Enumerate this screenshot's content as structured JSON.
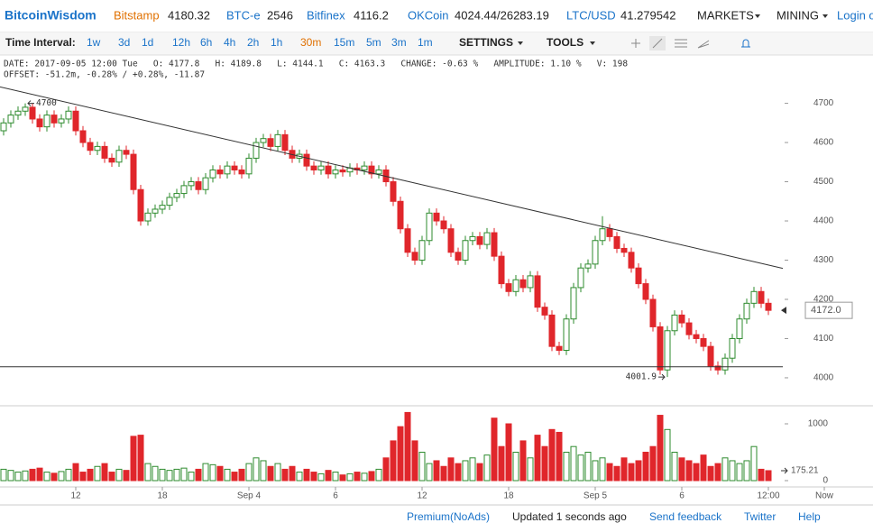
{
  "header": {
    "brand": "BitcoinWisdom",
    "tickers": [
      {
        "name": "Bitstamp",
        "price": "4180.32"
      },
      {
        "name": "BTC-e",
        "price": "2546"
      },
      {
        "name": "Bitfinex",
        "price": "4116.2"
      },
      {
        "name": "OKCoin",
        "price": "4024.44/26283.19"
      },
      {
        "name": "LTC/USD",
        "price": "41.279542"
      }
    ],
    "menus": [
      "MARKETS",
      "MINING"
    ],
    "login": "Login o"
  },
  "toolbar": {
    "label": "Time Interval:",
    "intervals": [
      "1w",
      "3d",
      "1d",
      "12h",
      "6h",
      "4h",
      "2h",
      "1h",
      "30m",
      "15m",
      "5m",
      "3m",
      "1m"
    ],
    "active": "30m",
    "menus": [
      "SETTINGS",
      "TOOLS"
    ]
  },
  "info": [
    "DATE: 2017-09-05 12:00 Tue   O: 4177.8   H: 4189.8   L: 4144.1   C: 4163.3   CHANGE: -0.63 %   AMPLITUDE: 1.10 %   V: 198",
    "OFFSET: -51.2m, -0.28% / +0.28%, -11.87"
  ],
  "chart_data": {
    "type": "candlestick",
    "up_color": "#2e8b2e",
    "down_color": "#e0262b",
    "open": [
      4630,
      4650,
      4670,
      4680,
      4690,
      4660,
      4640,
      4670,
      4650,
      4660,
      4680,
      4630,
      4600,
      4580,
      4590,
      4560,
      4550,
      4580,
      4570,
      4480,
      4400,
      4420,
      4430,
      4440,
      4460,
      4470,
      4490,
      4500,
      4480,
      4510,
      4530,
      4520,
      4540,
      4530,
      4520,
      4560,
      4600,
      4610,
      4590,
      4620,
      4580,
      4560,
      4570,
      4540,
      4530,
      4540,
      4520,
      4530,
      4525,
      4535,
      4530,
      4540,
      4520,
      4530,
      4500,
      4450,
      4380,
      4320,
      4300,
      4350,
      4420,
      4400,
      4380,
      4320,
      4300,
      4350,
      4360,
      4340,
      4370,
      4310,
      4240,
      4220,
      4250,
      4230,
      4260,
      4180,
      4160,
      4080,
      4070,
      4150,
      4230,
      4280,
      4290,
      4350,
      4380,
      4360,
      4330,
      4320,
      4280,
      4240,
      4200,
      4130,
      4020,
      4120,
      4160,
      4140,
      4110,
      4100,
      4080,
      4030,
      4020,
      4050,
      4100,
      4150,
      4190,
      4220,
      4190
    ],
    "high": [
      4662,
      4682,
      4692,
      4700,
      4700,
      4672,
      4682,
      4682,
      4672,
      4692,
      4692,
      4642,
      4612,
      4602,
      4602,
      4572,
      4592,
      4592,
      4582,
      4492,
      4432,
      4442,
      4452,
      4472,
      4482,
      4502,
      4512,
      4512,
      4522,
      4542,
      4542,
      4552,
      4552,
      4542,
      4572,
      4612,
      4622,
      4622,
      4632,
      4632,
      4592,
      4582,
      4582,
      4552,
      4552,
      4552,
      4542,
      4542,
      4547,
      4547,
      4552,
      4552,
      4542,
      4542,
      4512,
      4462,
      4392,
      4332,
      4362,
      4432,
      4432,
      4412,
      4392,
      4332,
      4362,
      4372,
      4372,
      4382,
      4382,
      4322,
      4252,
      4262,
      4262,
      4272,
      4272,
      4192,
      4172,
      4092,
      4162,
      4242,
      4292,
      4302,
      4362,
      4412,
      4392,
      4372,
      4342,
      4332,
      4292,
      4252,
      4212,
      4142,
      4132,
      4172,
      4172,
      4152,
      4122,
      4112,
      4092,
      4042,
      4062,
      4112,
      4162,
      4202,
      4232,
      4232,
      4202
    ],
    "low": [
      4618,
      4638,
      4658,
      4668,
      4648,
      4628,
      4628,
      4638,
      4638,
      4648,
      4618,
      4588,
      4568,
      4568,
      4548,
      4538,
      4538,
      4558,
      4468,
      4388,
      4388,
      4408,
      4418,
      4428,
      4448,
      4458,
      4478,
      4468,
      4468,
      4498,
      4508,
      4508,
      4518,
      4508,
      4508,
      4548,
      4588,
      4578,
      4578,
      4568,
      4548,
      4548,
      4528,
      4518,
      4518,
      4508,
      4508,
      4513,
      4513,
      4518,
      4518,
      4508,
      4508,
      4488,
      4438,
      4368,
      4308,
      4288,
      4288,
      4338,
      4388,
      4368,
      4308,
      4288,
      4288,
      4338,
      4328,
      4328,
      4298,
      4228,
      4208,
      4208,
      4218,
      4218,
      4168,
      4148,
      4068,
      4058,
      4058,
      4138,
      4218,
      4268,
      4278,
      4338,
      4348,
      4318,
      4308,
      4268,
      4228,
      4188,
      4118,
      4008,
      4001.9,
      4108,
      4128,
      4098,
      4088,
      4068,
      4018,
      4008,
      4008,
      4038,
      4088,
      4138,
      4178,
      4178,
      4160
    ],
    "close": [
      4650,
      4670,
      4680,
      4690,
      4660,
      4640,
      4670,
      4650,
      4660,
      4680,
      4630,
      4600,
      4580,
      4590,
      4560,
      4550,
      4580,
      4570,
      4480,
      4400,
      4420,
      4430,
      4440,
      4460,
      4470,
      4490,
      4500,
      4480,
      4510,
      4530,
      4520,
      4540,
      4530,
      4520,
      4560,
      4600,
      4610,
      4590,
      4620,
      4580,
      4560,
      4570,
      4540,
      4530,
      4540,
      4520,
      4530,
      4525,
      4535,
      4530,
      4540,
      4520,
      4530,
      4500,
      4450,
      4380,
      4320,
      4300,
      4350,
      4420,
      4400,
      4380,
      4320,
      4300,
      4350,
      4360,
      4340,
      4370,
      4310,
      4240,
      4220,
      4250,
      4230,
      4260,
      4180,
      4160,
      4080,
      4070,
      4150,
      4230,
      4280,
      4290,
      4350,
      4380,
      4360,
      4330,
      4320,
      4280,
      4240,
      4200,
      4130,
      4020,
      4120,
      4160,
      4140,
      4110,
      4100,
      4080,
      4030,
      4020,
      4050,
      4100,
      4150,
      4190,
      4220,
      4190,
      4172
    ],
    "volume": [
      200,
      180,
      150,
      170,
      200,
      220,
      150,
      130,
      160,
      200,
      300,
      150,
      200,
      250,
      300,
      150,
      200,
      180,
      780,
      800,
      300,
      250,
      200,
      180,
      200,
      220,
      150,
      200,
      300,
      280,
      250,
      200,
      150,
      200,
      300,
      400,
      350,
      250,
      300,
      200,
      250,
      150,
      200,
      150,
      120,
      180,
      150,
      100,
      120,
      150,
      130,
      160,
      200,
      400,
      700,
      950,
      1200,
      700,
      500,
      300,
      350,
      250,
      400,
      300,
      350,
      400,
      300,
      450,
      1100,
      600,
      1000,
      500,
      700,
      400,
      800,
      600,
      900,
      850,
      500,
      600,
      450,
      500,
      350,
      400,
      300,
      250,
      400,
      300,
      350,
      500,
      600,
      1150,
      900,
      500,
      400,
      350,
      300,
      450,
      250,
      300,
      400,
      350,
      300,
      350,
      600,
      200,
      175.21
    ],
    "xlim": [
      -0.5,
      120.5
    ],
    "xticks": [
      {
        "value": 10,
        "label": "12"
      },
      {
        "value": 22,
        "label": "18"
      },
      {
        "value": 34,
        "label": "Sep 4"
      },
      {
        "value": 46,
        "label": "6"
      },
      {
        "value": 58,
        "label": "12"
      },
      {
        "value": 70,
        "label": "18"
      },
      {
        "value": 82,
        "label": "Sep 5"
      },
      {
        "value": 94,
        "label": "6"
      },
      {
        "value": 106,
        "label": "12:00"
      },
      {
        "value": 113.75,
        "label": "Now"
      }
    ],
    "ylim": [
      3970,
      4745
    ],
    "yticks": [
      4000,
      4100,
      4200,
      4300,
      4400,
      4500,
      4600,
      4700
    ],
    "y2lim": [
      0,
      1270
    ],
    "y2ticks": [
      0,
      1000
    ],
    "markers": [
      {
        "index": 3,
        "value": 4700
      },
      {
        "index": 92,
        "value": 4001.9
      }
    ],
    "last_price": {
      "value": 4172,
      "label": "4172.0"
    },
    "last_volume": 175.21,
    "lines": [
      {
        "x": [
          -0.5,
          108
        ],
        "y": [
          4742,
          4279
        ],
        "color": "#333333"
      },
      {
        "x": [
          -0.5,
          108
        ],
        "y": [
          4028,
          4028
        ],
        "color": "#333333"
      }
    ]
  },
  "footer": [
    "Premium(NoAds)",
    "Updated 1 seconds ago",
    "Send feedback",
    "Twitter",
    "Help"
  ]
}
